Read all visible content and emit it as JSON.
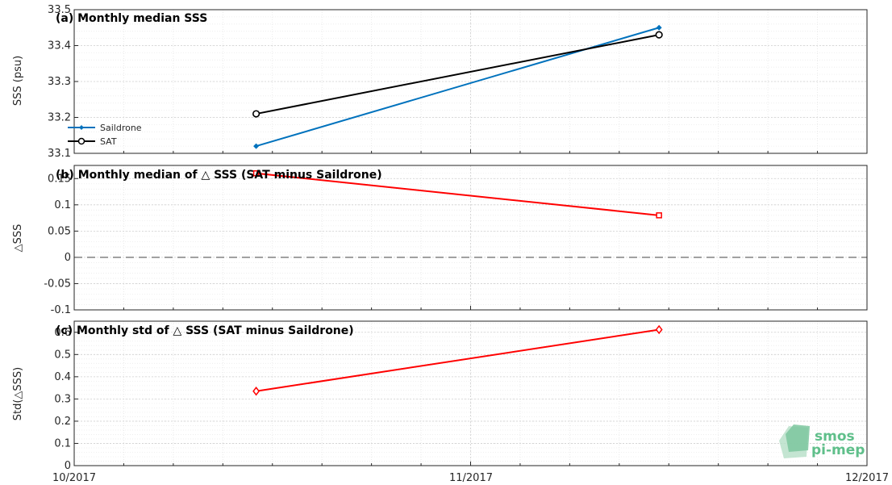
{
  "x_ticks": [
    "10/2017",
    "11/2017",
    "12/2017"
  ],
  "logo": {
    "line1": "smos",
    "line2": "pi-mep",
    "color": "#5fbf8a"
  },
  "chart_data": [
    {
      "type": "line",
      "title": "(a) Monthly median SSS",
      "ylabel": "SSS (psu)",
      "ylim": [
        33.1,
        33.5
      ],
      "yticks": [
        33.1,
        33.2,
        33.3,
        33.4,
        33.5
      ],
      "ytick_labels": [
        "33.1",
        "33.2",
        "33.3",
        "33.4",
        "33.5"
      ],
      "x": [
        "2017-10-15",
        "2017-11-15"
      ],
      "series": [
        {
          "name": "Saildrone",
          "values": [
            33.12,
            33.45
          ],
          "color": "#0072bd",
          "marker": "diamond-filled"
        },
        {
          "name": "SAT",
          "values": [
            33.21,
            33.43
          ],
          "color": "#000000",
          "marker": "circle-open"
        }
      ],
      "legend": "bottom-left",
      "grid": true
    },
    {
      "type": "line",
      "title": "(b) Monthly median of △ SSS (SAT minus Saildrone)",
      "ylabel": "△SSS",
      "ylim": [
        -0.1,
        0.175
      ],
      "yticks": [
        -0.1,
        -0.05,
        0,
        0.05,
        0.1,
        0.15
      ],
      "ytick_labels": [
        "-0.1",
        "-0.05",
        "0",
        "0.05",
        "0.1",
        "0.15"
      ],
      "x": [
        "2017-10-15",
        "2017-11-15"
      ],
      "series": [
        {
          "values": [
            0.16,
            0.08
          ],
          "color": "#ff0000",
          "marker": "square-open"
        }
      ],
      "reference_line": {
        "y": 0,
        "style": "dashed",
        "color": "#808080"
      },
      "grid": true
    },
    {
      "type": "line",
      "title": "(c) Monthly std of △ SSS (SAT minus Saildrone)",
      "ylabel": "Std(△SSS)",
      "ylim": [
        0,
        0.65
      ],
      "yticks": [
        0,
        0.1,
        0.2,
        0.3,
        0.4,
        0.5,
        0.6
      ],
      "ytick_labels": [
        "0",
        "0.1",
        "0.2",
        "0.3",
        "0.4",
        "0.5",
        "0.6"
      ],
      "x": [
        "2017-10-15",
        "2017-11-15"
      ],
      "series": [
        {
          "values": [
            0.335,
            0.612
          ],
          "color": "#ff0000",
          "marker": "diamond-open"
        }
      ],
      "grid": true
    }
  ]
}
